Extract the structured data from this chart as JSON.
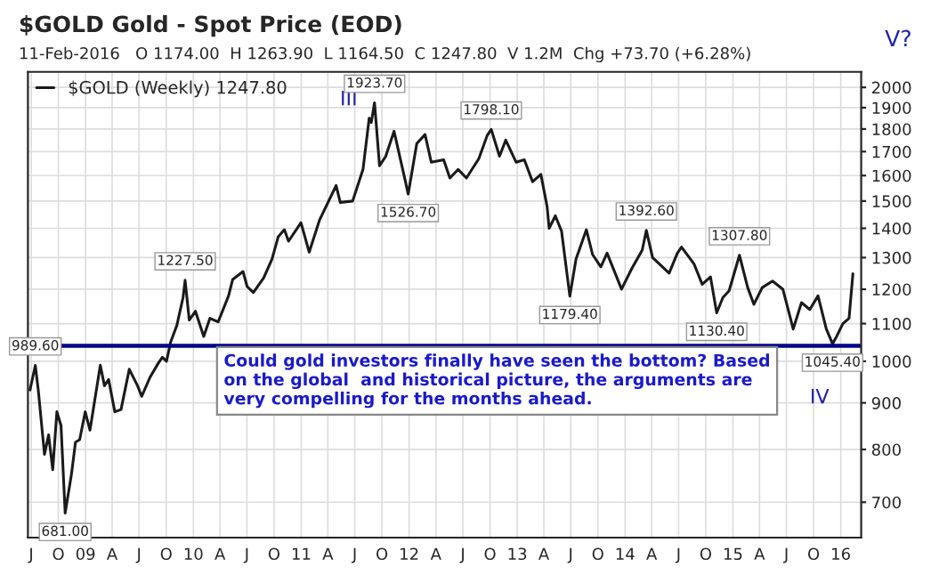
{
  "chart_data": {
    "type": "line",
    "title": "$GOLD Gold - Spot Price (EOD)",
    "subtitle": "11-Feb-2016   O 1174.00  H 1263.90  L 1164.50  C 1247.80  V 1.2M  Chg +73.70 (+6.28%)",
    "x": [
      "2008-06-27",
      "2008-07-15",
      "2008-07-25",
      "2008-08-15",
      "2008-08-29",
      "2008-09-12",
      "2008-09-26",
      "2008-10-10",
      "2008-10-24",
      "2008-11-14",
      "2008-11-28",
      "2008-12-12",
      "2008-12-31",
      "2009-01-16",
      "2009-02-20",
      "2009-03-06",
      "2009-03-20",
      "2009-04-10",
      "2009-05-01",
      "2009-05-29",
      "2009-06-26",
      "2009-07-10",
      "2009-08-07",
      "2009-09-04",
      "2009-09-18",
      "2009-10-02",
      "2009-10-16",
      "2009-11-06",
      "2009-11-27",
      "2009-12-04",
      "2009-12-18",
      "2010-01-08",
      "2010-02-05",
      "2010-02-26",
      "2010-03-26",
      "2010-04-30",
      "2010-05-14",
      "2010-06-18",
      "2010-07-02",
      "2010-07-23",
      "2010-08-27",
      "2010-09-24",
      "2010-10-15",
      "2010-11-05",
      "2010-11-19",
      "2010-12-31",
      "2011-01-28",
      "2011-03-04",
      "2011-04-29",
      "2011-05-13",
      "2011-06-24",
      "2011-07-29",
      "2011-08-19",
      "2011-08-26",
      "2011-09-06",
      "2011-09-23",
      "2011-10-14",
      "2011-11-11",
      "2011-12-16",
      "2011-12-29",
      "2012-01-27",
      "2012-02-24",
      "2012-03-16",
      "2012-04-27",
      "2012-05-18",
      "2012-06-15",
      "2012-07-13",
      "2012-08-24",
      "2012-09-21",
      "2012-10-05",
      "2012-11-02",
      "2012-11-23",
      "2012-12-28",
      "2013-01-25",
      "2013-02-22",
      "2013-03-22",
      "2013-04-12",
      "2013-04-19",
      "2013-05-10",
      "2013-05-31",
      "2013-06-28",
      "2013-07-19",
      "2013-08-23",
      "2013-09-13",
      "2013-10-11",
      "2013-11-01",
      "2013-12-20",
      "2014-01-24",
      "2014-02-28",
      "2014-03-14",
      "2014-04-04",
      "2014-05-30",
      "2014-06-27",
      "2014-07-11",
      "2014-08-22",
      "2014-09-19",
      "2014-10-17",
      "2014-11-07",
      "2014-11-28",
      "2014-12-19",
      "2015-01-23",
      "2015-02-20",
      "2015-03-13",
      "2015-04-10",
      "2015-05-15",
      "2015-06-19",
      "2015-07-24",
      "2015-08-21",
      "2015-09-18",
      "2015-10-16",
      "2015-11-13",
      "2015-12-04",
      "2015-12-18",
      "2016-01-08",
      "2016-01-29",
      "2016-02-11"
    ],
    "series": [
      {
        "name": "$GOLD (Weekly) 1247.80",
        "color": "#1a1a1a",
        "values": [
          930,
          989.6,
          930,
          790,
          830,
          760,
          880,
          850,
          681,
          750,
          815,
          820,
          880,
          840,
          990,
          940,
          955,
          880,
          885,
          980,
          940,
          915,
          960,
          995,
          1010,
          1000,
          1050,
          1095,
          1175,
          1227.5,
          1110,
          1135,
          1065,
          1115,
          1105,
          1180,
          1230,
          1255,
          1208,
          1190,
          1235,
          1295,
          1370,
          1395,
          1355,
          1420,
          1318,
          1430,
          1560,
          1495,
          1500,
          1625,
          1850,
          1830,
          1923.7,
          1640,
          1680,
          1790,
          1595,
          1526.7,
          1735,
          1775,
          1655,
          1665,
          1590,
          1625,
          1590,
          1670,
          1770,
          1798.1,
          1680,
          1750,
          1655,
          1665,
          1575,
          1605,
          1480,
          1400,
          1445,
          1390,
          1179.4,
          1295,
          1395,
          1310,
          1270,
          1315,
          1200,
          1265,
          1325,
          1392.6,
          1300,
          1250,
          1315,
          1335,
          1280,
          1215,
          1238,
          1130.4,
          1175,
          1195,
          1307.8,
          1205,
          1155,
          1205,
          1225,
          1200,
          1085,
          1160,
          1140,
          1180,
          1085,
          1045.4,
          1065,
          1100,
          1115,
          1247.8
        ]
      }
    ],
    "log": "y",
    "ylim": [
      640,
      2080
    ],
    "yticks": [
      700,
      800,
      900,
      1000,
      1100,
      1200,
      1300,
      1400,
      1500,
      1600,
      1700,
      1800,
      1900,
      2000
    ],
    "xlim": [
      "2008-06-20",
      "2016-03-10"
    ],
    "xticks": [
      {
        "value": "2008-07-01",
        "label": "J"
      },
      {
        "value": "2008-10-01",
        "label": "O"
      },
      {
        "value": "2009-01-01",
        "label": "09"
      },
      {
        "value": "2009-04-01",
        "label": "A"
      },
      {
        "value": "2009-07-01",
        "label": "J"
      },
      {
        "value": "2009-10-01",
        "label": "O"
      },
      {
        "value": "2010-01-01",
        "label": "10"
      },
      {
        "value": "2010-04-01",
        "label": "A"
      },
      {
        "value": "2010-07-01",
        "label": "J"
      },
      {
        "value": "2010-10-01",
        "label": "O"
      },
      {
        "value": "2011-01-01",
        "label": "11"
      },
      {
        "value": "2011-04-01",
        "label": "A"
      },
      {
        "value": "2011-07-01",
        "label": "J"
      },
      {
        "value": "2011-10-01",
        "label": "O"
      },
      {
        "value": "2012-01-01",
        "label": "12"
      },
      {
        "value": "2012-04-01",
        "label": "A"
      },
      {
        "value": "2012-07-01",
        "label": "J"
      },
      {
        "value": "2012-10-01",
        "label": "O"
      },
      {
        "value": "2013-01-01",
        "label": "13"
      },
      {
        "value": "2013-04-01",
        "label": "A"
      },
      {
        "value": "2013-07-01",
        "label": "J"
      },
      {
        "value": "2013-10-01",
        "label": "O"
      },
      {
        "value": "2014-01-01",
        "label": "14"
      },
      {
        "value": "2014-04-01",
        "label": "A"
      },
      {
        "value": "2014-07-01",
        "label": "J"
      },
      {
        "value": "2014-10-01",
        "label": "O"
      },
      {
        "value": "2015-01-01",
        "label": "15"
      },
      {
        "value": "2015-04-01",
        "label": "A"
      },
      {
        "value": "2015-07-01",
        "label": "J"
      },
      {
        "value": "2015-10-01",
        "label": "O"
      },
      {
        "value": "2016-01-01",
        "label": "16"
      }
    ],
    "grid": true,
    "legend": "top left",
    "ref_lines": [
      {
        "axis": "y",
        "value": 1040,
        "color": "#00008b"
      }
    ],
    "annotations": [
      {
        "text": "989.60",
        "x": "2008-07-15",
        "y": 989.6
      },
      {
        "text": "681.00",
        "x": "2008-10-24",
        "y": 681
      },
      {
        "text": "1227.50",
        "x": "2009-12-04",
        "y": 1227.5
      },
      {
        "text": "1923.70",
        "x": "2011-09-06",
        "y": 1923.7
      },
      {
        "text": "1526.70",
        "x": "2011-12-29",
        "y": 1526.7
      },
      {
        "text": "1798.10",
        "x": "2012-10-05",
        "y": 1798.1
      },
      {
        "text": "1179.40",
        "x": "2013-06-28",
        "y": 1179.4
      },
      {
        "text": "1392.60",
        "x": "2014-03-14",
        "y": 1392.6
      },
      {
        "text": "1130.40",
        "x": "2014-11-07",
        "y": 1130.4
      },
      {
        "text": "1307.80",
        "x": "2015-01-23",
        "y": 1307.8
      },
      {
        "text": "1045.40",
        "x": "2015-12-04",
        "y": 1045.4
      },
      "III",
      "IV",
      "Could gold investors finally have seen the bottom? Based on the global  and historical picture, the arguments are very compelling for the months ahead.",
      "V?"
    ]
  }
}
